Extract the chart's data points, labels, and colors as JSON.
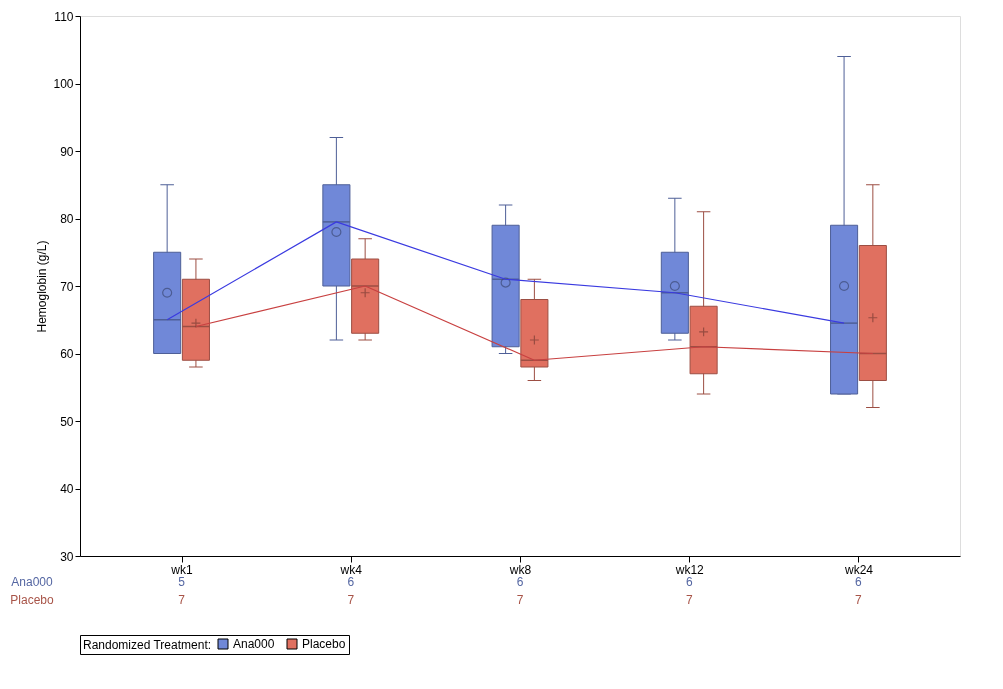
{
  "chart_data": {
    "type": "box",
    "ylabel": "Hemoglobin (g/L)",
    "legend_title": "Randomized Treatment:",
    "legend": "bottom",
    "grid": false,
    "categories": [
      "wk1",
      "wk4",
      "wk8",
      "wk12",
      "wk24"
    ],
    "ylim": [
      30,
      110
    ],
    "yticks": [
      30,
      40,
      50,
      60,
      70,
      80,
      90,
      100,
      110
    ],
    "series": [
      {
        "name": "Ana000",
        "type": "box",
        "color": "#7088d8",
        "marker": "circle",
        "boxes": [
          {
            "low": 60,
            "q1": 60,
            "median": 65,
            "q3": 75,
            "high": 85,
            "mean": 69
          },
          {
            "low": 62,
            "q1": 70,
            "median": 79.5,
            "q3": 85,
            "high": 92,
            "mean": 78
          },
          {
            "low": 60,
            "q1": 61,
            "median": 71,
            "q3": 79,
            "high": 82,
            "mean": 70.5
          },
          {
            "low": 62,
            "q1": 63,
            "median": 69,
            "q3": 75,
            "high": 83,
            "mean": 70
          },
          {
            "low": 54,
            "q1": 54,
            "median": 64.5,
            "q3": 79,
            "high": 104,
            "mean": 70
          }
        ]
      },
      {
        "name": "Placebo",
        "type": "box",
        "color": "#e07060",
        "marker": "cross",
        "boxes": [
          {
            "low": 58,
            "q1": 59,
            "median": 64,
            "q3": 71,
            "high": 74,
            "mean": 64.5
          },
          {
            "low": 62,
            "q1": 63,
            "median": 70,
            "q3": 74,
            "high": 77,
            "mean": 69
          },
          {
            "low": 56,
            "q1": 58,
            "median": 59,
            "q3": 68,
            "high": 71,
            "mean": 62
          },
          {
            "low": 54,
            "q1": 57,
            "median": 61,
            "q3": 67,
            "high": 81,
            "mean": 63.2
          },
          {
            "low": 52,
            "q1": 56,
            "median": 60,
            "q3": 76,
            "high": 85,
            "mean": 65.3
          }
        ]
      },
      {
        "type": "line",
        "color": "#3a3ae0",
        "line_style": "solid",
        "values": [
          65,
          79.5,
          71,
          69,
          64.5
        ]
      },
      {
        "type": "line",
        "color": "#c84040",
        "line_style": "solid",
        "values": [
          64,
          70,
          59,
          61,
          60
        ]
      }
    ],
    "annotations": [
      "Ana000",
      "5",
      "6",
      "6",
      "6",
      "6",
      "Placebo",
      "7",
      "7",
      "7",
      "7",
      "7"
    ]
  }
}
